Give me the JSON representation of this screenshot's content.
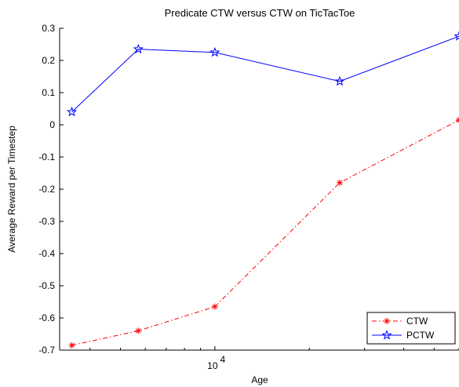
{
  "chart_data": {
    "type": "line",
    "title": "Predicate CTW versus CTW on TicTacToe",
    "xlabel": "Age",
    "ylabel": "Average Reward per Timestep",
    "x_scale": "log",
    "xlim": [
      3200,
      60000
    ],
    "ylim": [
      -0.7,
      0.3
    ],
    "y_ticks": [
      0.3,
      0.2,
      0.1,
      0,
      -0.1,
      -0.2,
      -0.3,
      -0.4,
      -0.5,
      -0.6,
      -0.7
    ],
    "y_tick_labels": [
      "0.3",
      "0.2",
      "0.1",
      "0",
      "-0.1",
      "-0.2",
      "-0.3",
      "-0.4",
      "-0.5",
      "-0.6",
      "-0.7"
    ],
    "x_tick_label": {
      "base": "10",
      "exponent": "4",
      "value": 10000
    },
    "grid": false,
    "legend_position": "bottom-right",
    "series": [
      {
        "name": "CTW",
        "color": "#ff0000",
        "line_style": "dash-dot",
        "marker": "asterisk",
        "x": [
          3500,
          5700,
          10000,
          25000,
          60000
        ],
        "values": [
          -0.685,
          -0.64,
          -0.565,
          -0.18,
          0.015
        ]
      },
      {
        "name": "PCTW",
        "color": "#0000ff",
        "line_style": "solid",
        "marker": "pentagram",
        "x": [
          3500,
          5700,
          10000,
          25000,
          60000
        ],
        "values": [
          0.04,
          0.235,
          0.225,
          0.135,
          0.275
        ]
      }
    ]
  }
}
